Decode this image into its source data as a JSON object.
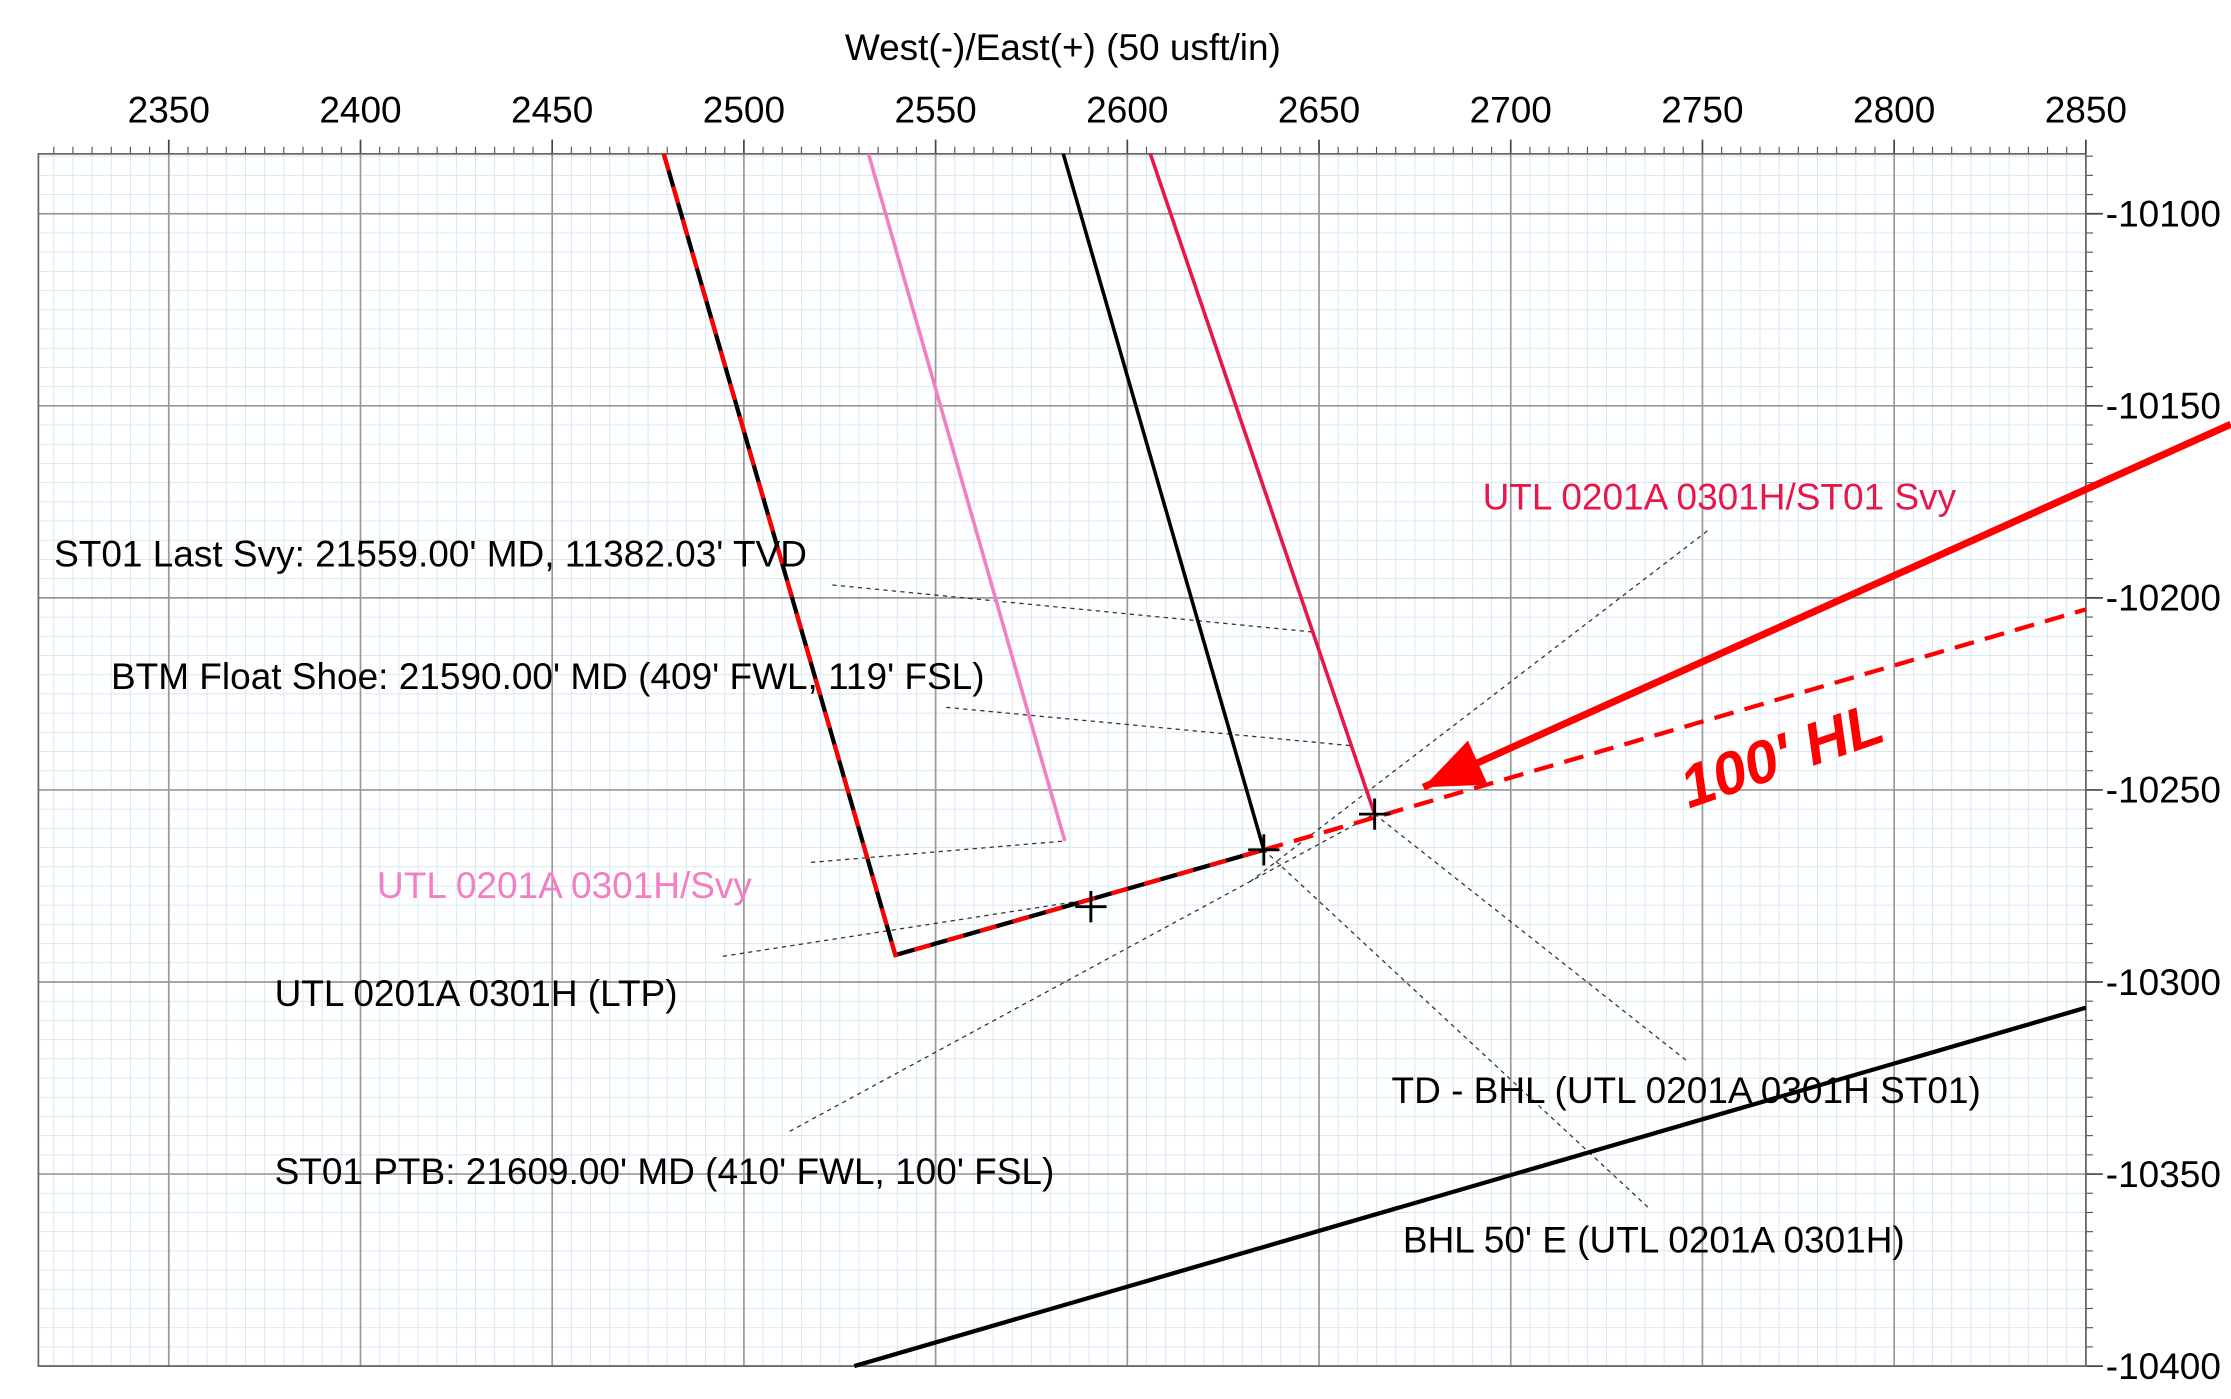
{
  "chart_data": {
    "type": "line",
    "title": "West(-)/East(+) (50 usft/in)",
    "xlim": [
      2316,
      2850
    ],
    "ylim": [
      -10400,
      -10084.4
    ],
    "xticks": [
      2350,
      2400,
      2450,
      2500,
      2550,
      2600,
      2650,
      2700,
      2750,
      2800,
      2850
    ],
    "yticks": [
      -10100,
      -10150,
      -10200,
      -10250,
      -10300,
      -10350,
      -10400
    ],
    "grid": true,
    "minor_grid_step": 5,
    "series": [
      {
        "color": "#000000",
        "dash_color": "#ff0000",
        "width": 3,
        "x": [
          2479.1,
          2539.5,
          2635.6
        ],
        "values": [
          -10084.4,
          -10293.0,
          -10265.6
        ]
      },
      {
        "color": "#ff0000",
        "dashed": true,
        "width": 3,
        "x": [
          2635.6,
          2850
        ],
        "values": [
          -10265.6,
          -10203.0
        ]
      },
      {
        "color": "#f27ec3",
        "width": 2.5,
        "x": [
          2532.5,
          2583.7
        ],
        "values": [
          -10084.4,
          -10263.3
        ]
      },
      {
        "color": "#000000",
        "width": 2.5,
        "x": [
          2583.3,
          2635.6
        ],
        "values": [
          -10084.4,
          -10265.6
        ]
      },
      {
        "color": "#e8174a",
        "width": 2.5,
        "x": [
          2606.0,
          2664.5
        ],
        "values": [
          -10084.4,
          -10256.3
        ]
      },
      {
        "color": "#ff0000",
        "width": 5,
        "arrow": true,
        "x": [
          2887.8,
          2677.2
        ],
        "values": [
          -10154.8,
          -10249.3
        ]
      },
      {
        "color": "#000000",
        "width": 3,
        "x": [
          2528.8,
          2850
        ],
        "values": [
          -10400,
          -10306.7
        ]
      }
    ],
    "markers": {
      "x": [
        2590.5,
        2635.6,
        2664.5
      ],
      "values": [
        -10280.4,
        -10265.6,
        -10256.3
      ]
    },
    "annotations": [
      {
        "text": "UTL 0201A 0301H/ST01 Svy",
        "color": "#e8174a"
      },
      {
        "text": "ST01 Last Svy: 21559.00' MD, 11382.03' TVD",
        "color": "#000000"
      },
      {
        "text": "BTM Float Shoe: 21590.00' MD (409' FWL, 119' FSL)",
        "color": "#000000"
      },
      {
        "text": "UTL 0201A 0301H/Svy",
        "color": "#f27ec3"
      },
      {
        "text": "UTL 0201A 0301H (LTP)",
        "color": "#000000"
      },
      {
        "text": "TD - BHL (UTL 0201A 0301H ST01)",
        "color": "#000000"
      },
      {
        "text": "ST01 PTB: 21609.00' MD (410' FWL, 100' FSL)",
        "color": "#000000"
      },
      {
        "text": "BHL 50' E (UTL 0201A 0301H)",
        "color": "#000000"
      },
      {
        "text": "100' HL",
        "color": "#ff0000"
      }
    ]
  }
}
